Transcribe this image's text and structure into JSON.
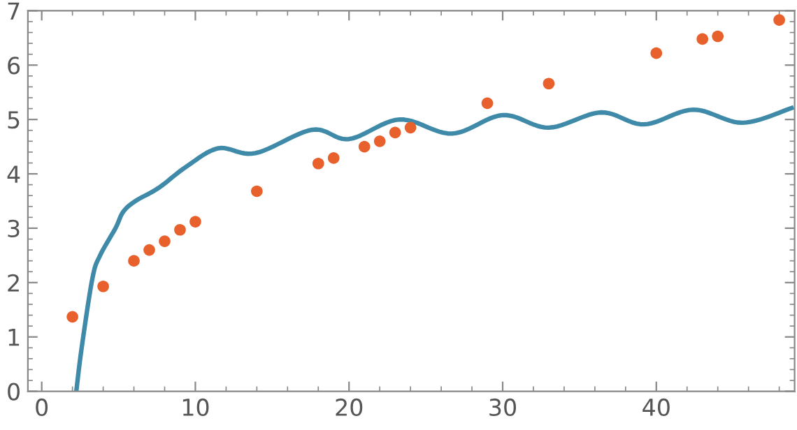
{
  "chart_data": {
    "type": "scatter",
    "xlim": [
      -0.9,
      49
    ],
    "ylim": [
      0,
      7
    ],
    "xticks": [
      0,
      10,
      20,
      30,
      40
    ],
    "yticks": [
      0,
      1,
      2,
      3,
      4,
      5,
      6,
      7
    ],
    "grid": false,
    "legend": false,
    "series": [
      {
        "type": "line",
        "color": "#3e8aa8",
        "marker": "none",
        "line_style": "solid",
        "x": [
          2.25,
          2.6,
          3.3,
          3.8,
          4.8,
          5.3,
          6.1,
          7.6,
          9.4,
          11.5,
          13.9,
          17.6,
          20,
          23.3,
          26.7,
          30,
          33,
          36.4,
          39.2,
          42.4,
          45.6,
          48.8
        ],
        "values": [
          0,
          0.8,
          2.08,
          2.5,
          3.0,
          3.3,
          3.5,
          3.74,
          4.13,
          4.47,
          4.38,
          4.81,
          4.64,
          5.0,
          4.74,
          5.08,
          4.85,
          5.13,
          4.91,
          5.18,
          4.94,
          5.21
        ]
      },
      {
        "color": "#e8612c",
        "marker": "circle",
        "x": [
          2,
          4,
          6,
          7,
          8,
          9,
          10,
          14,
          18,
          19,
          21,
          22,
          23,
          24,
          29,
          33,
          40,
          43,
          44,
          48
        ],
        "values": [
          1.37,
          1.93,
          2.4,
          2.6,
          2.76,
          2.97,
          3.12,
          3.68,
          4.19,
          4.29,
          4.5,
          4.6,
          4.76,
          4.85,
          5.3,
          5.66,
          6.22,
          6.48,
          6.53,
          6.83
        ]
      }
    ]
  }
}
